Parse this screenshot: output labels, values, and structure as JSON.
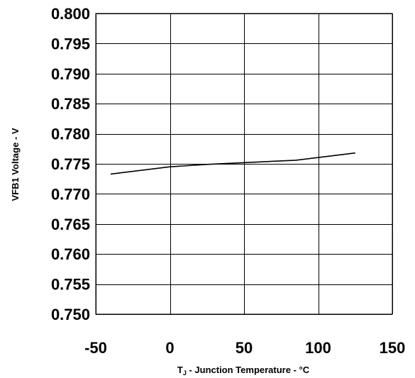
{
  "chart_data": {
    "type": "line",
    "title": "",
    "xlabel_main": "T",
    "xlabel_sub": "J",
    "xlabel_rest": " - Junction Temperature - °C",
    "ylabel": "VFB1 Voltage - V",
    "xlim": [
      -50,
      150
    ],
    "ylim": [
      0.75,
      0.8
    ],
    "x_ticks": [
      "-50",
      "0",
      "50",
      "100",
      "150"
    ],
    "y_ticks": [
      "0.800",
      "0.795",
      "0.790",
      "0.785",
      "0.780",
      "0.775",
      "0.770",
      "0.765",
      "0.760",
      "0.755",
      "0.750"
    ],
    "grid": true,
    "series": [
      {
        "color": "#000000",
        "x": [
          -40,
          0,
          25,
          85,
          125
        ],
        "y": [
          0.7733,
          0.7745,
          0.7749,
          0.7756,
          0.7768
        ]
      }
    ]
  }
}
